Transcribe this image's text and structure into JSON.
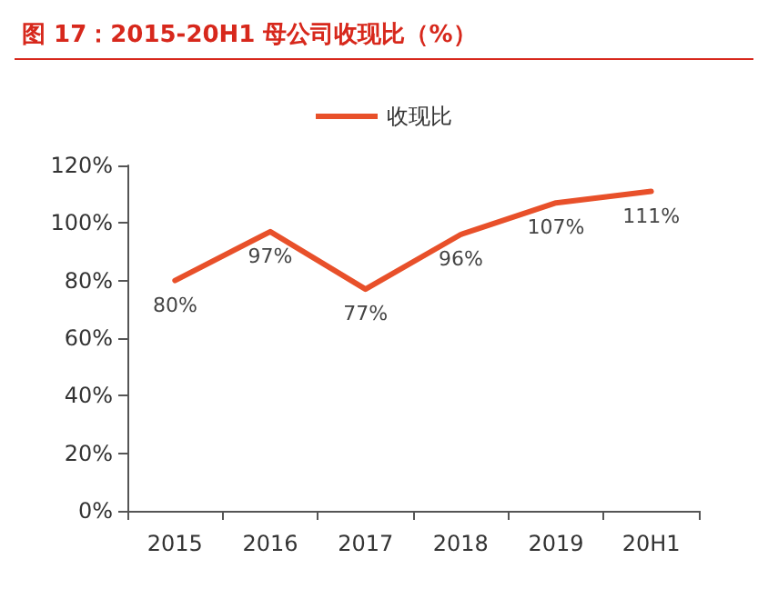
{
  "chart_data": {
    "type": "line",
    "title": "图 17：2015-20H1 母公司收现比（%）",
    "categories": [
      "2015",
      "2016",
      "2017",
      "2018",
      "2019",
      "20H1"
    ],
    "series": [
      {
        "name": "收现比",
        "color": "#e8502a",
        "values": [
          80,
          97,
          77,
          96,
          107,
          111
        ],
        "value_labels": [
          "80%",
          "97%",
          "77%",
          "96%",
          "107%",
          "111%"
        ]
      }
    ],
    "ylim": [
      0,
      120
    ],
    "yticks": [
      {
        "value": 0,
        "label": "0%"
      },
      {
        "value": 20,
        "label": "20%"
      },
      {
        "value": 40,
        "label": "40%"
      },
      {
        "value": 60,
        "label": "60%"
      },
      {
        "value": 80,
        "label": "80%"
      },
      {
        "value": 100,
        "label": "100%"
      },
      {
        "value": 120,
        "label": "120%"
      }
    ],
    "grid": false,
    "legend": "top",
    "marker": "none",
    "line_style": "solid"
  }
}
